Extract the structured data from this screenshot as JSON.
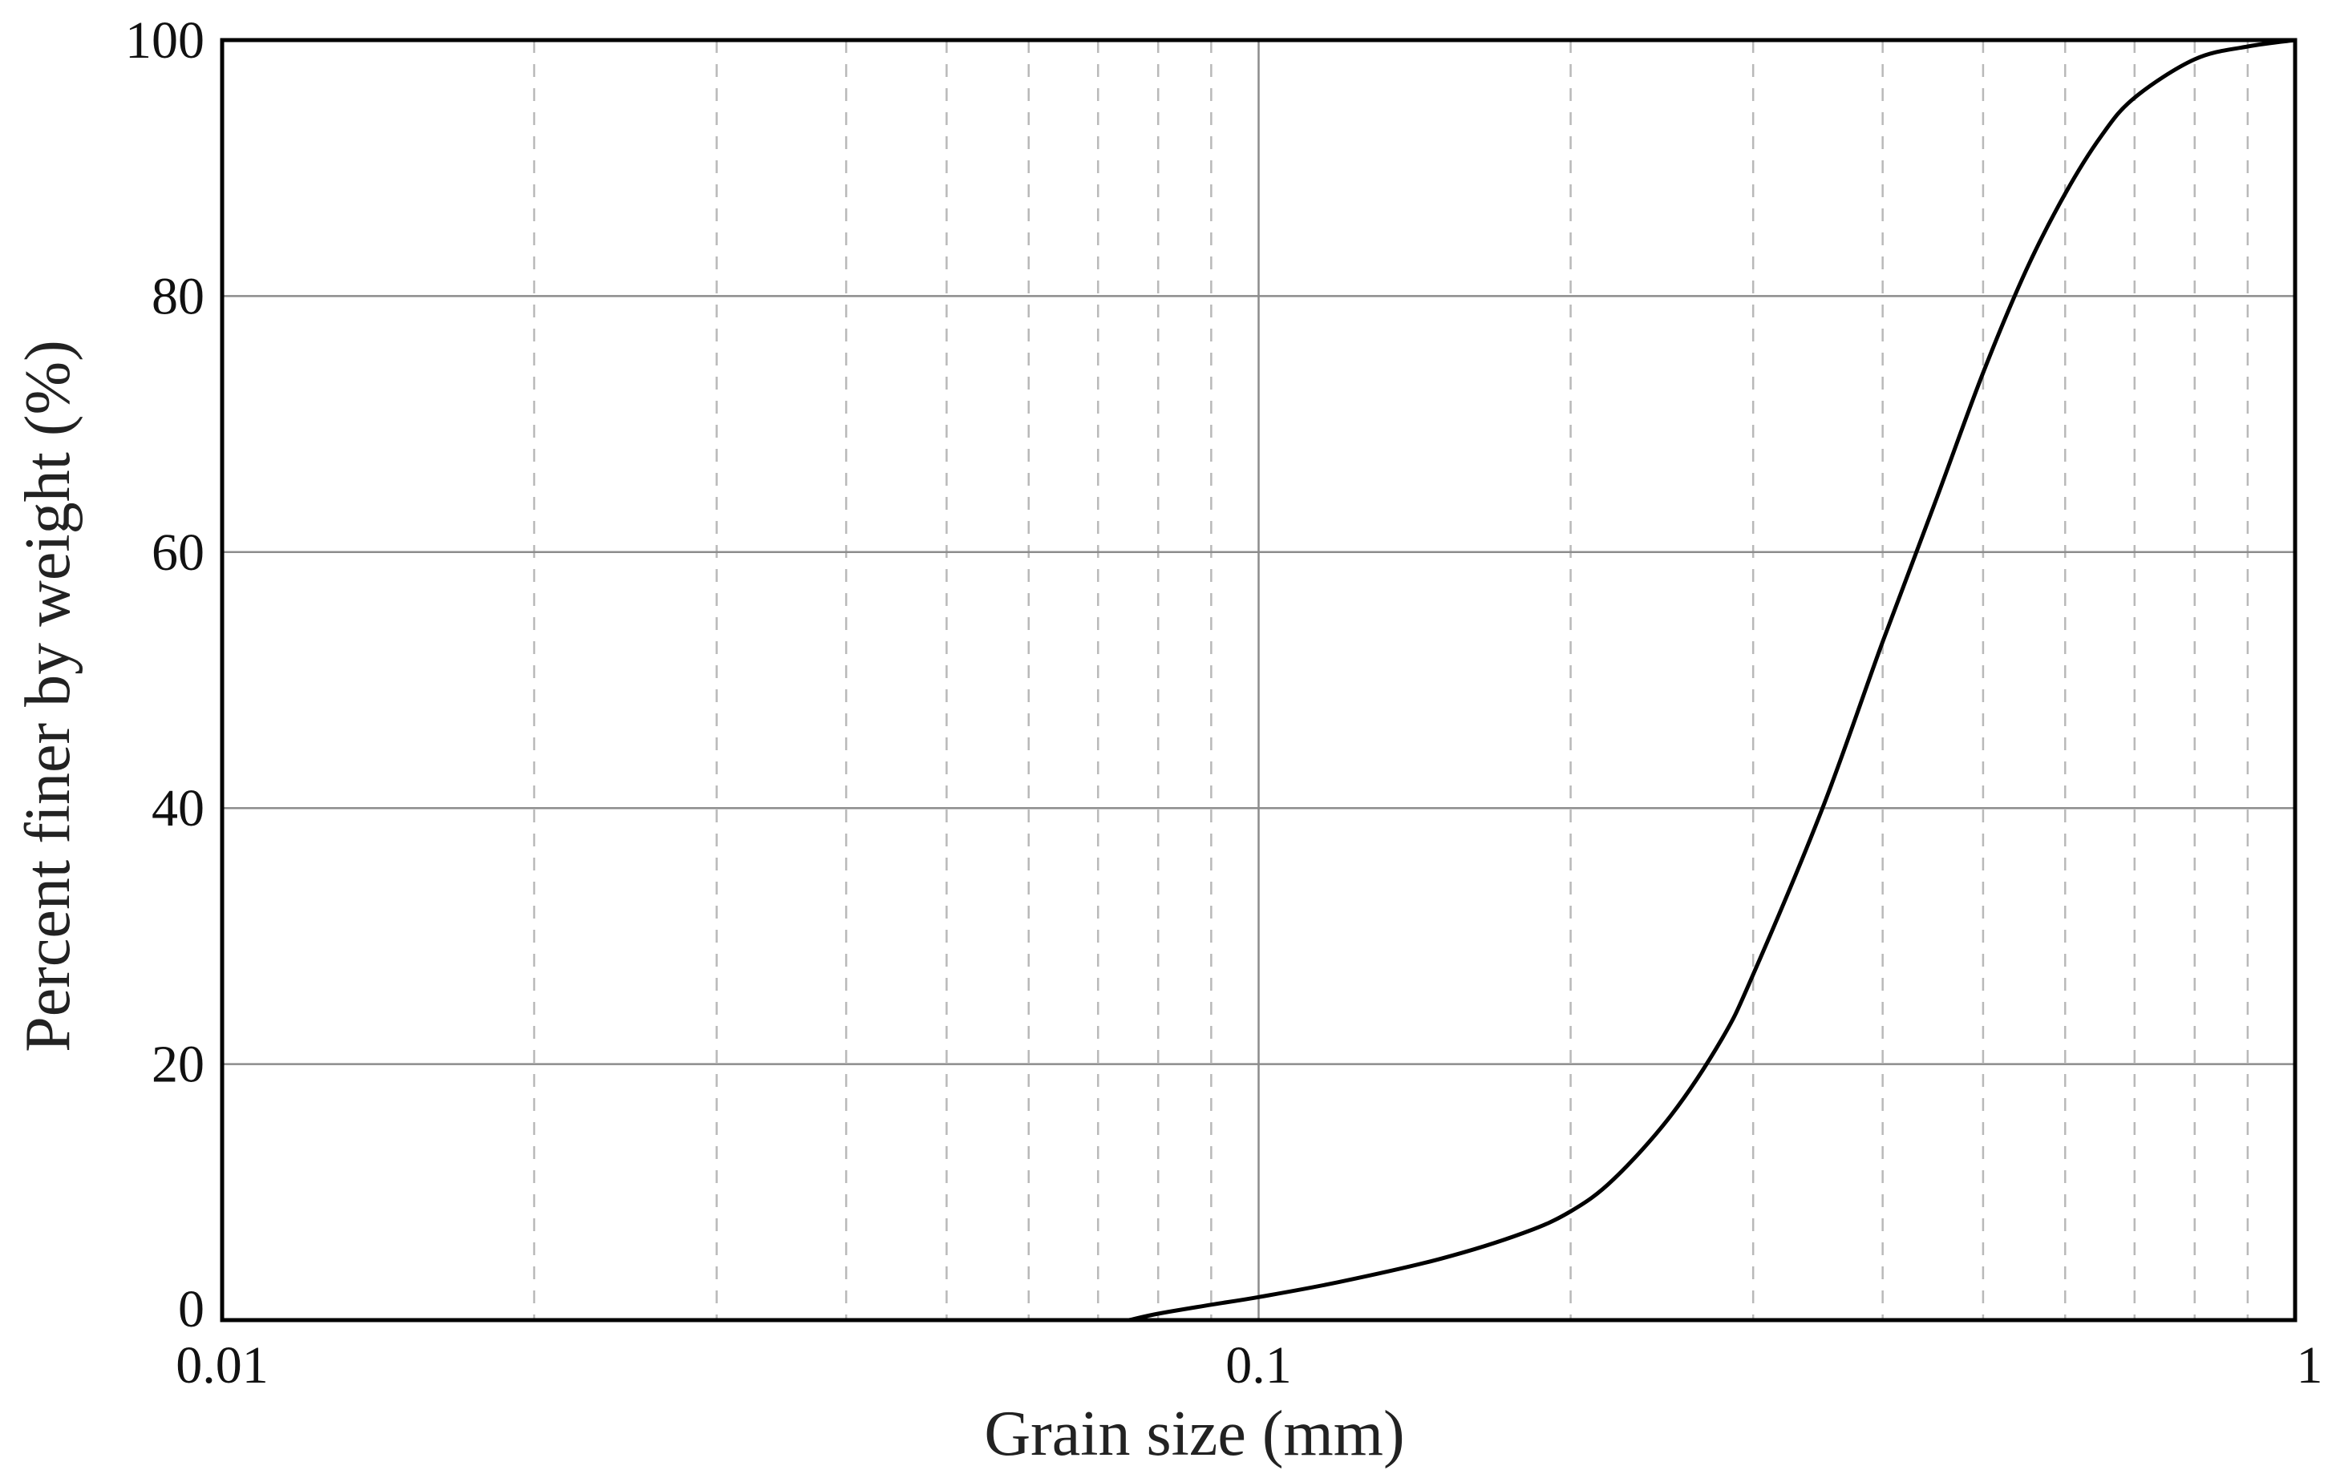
{
  "chart_data": {
    "type": "line",
    "title": "",
    "xlabel": "Grain size  (mm)",
    "ylabel": "Percent finer by weight (%)",
    "x_scale": "log",
    "xlim": [
      0.01,
      1
    ],
    "ylim": [
      0,
      100
    ],
    "x_ticks": [
      {
        "value": 0.01,
        "label": "0.01"
      },
      {
        "value": 0.1,
        "label": "0.1"
      },
      {
        "value": 1,
        "label": "1"
      }
    ],
    "y_ticks": [
      {
        "value": 0,
        "label": "0"
      },
      {
        "value": 20,
        "label": "20"
      },
      {
        "value": 40,
        "label": "40"
      },
      {
        "value": 60,
        "label": "60"
      },
      {
        "value": 80,
        "label": "80"
      },
      {
        "value": 100,
        "label": "100"
      }
    ],
    "x_minor_gridlines": [
      0.02,
      0.03,
      0.04,
      0.05,
      0.06,
      0.07,
      0.08,
      0.09,
      0.2,
      0.3,
      0.4,
      0.5,
      0.6,
      0.7,
      0.8,
      0.9
    ],
    "grid": {
      "major": "solid",
      "minor": "dashed"
    },
    "colors": {
      "curve": "#000000",
      "major_grid": "#8c8c8c",
      "minor_grid": "#b9b9b9"
    },
    "series": [
      {
        "x": [
          0.075,
          0.08,
          0.09,
          0.1,
          0.12,
          0.15,
          0.18,
          0.2,
          0.22,
          0.25,
          0.28,
          0.3,
          0.35,
          0.4,
          0.45,
          0.5,
          0.55,
          0.6,
          0.65,
          0.7,
          0.8,
          0.9,
          1.0
        ],
        "y": [
          0,
          0.5,
          1.2,
          1.8,
          3.0,
          4.8,
          6.8,
          8.5,
          11.0,
          16.0,
          22.0,
          27.0,
          40.0,
          53.0,
          64.0,
          74.0,
          82.0,
          88.0,
          92.5,
          95.5,
          98.5,
          99.5,
          100.0
        ]
      }
    ]
  }
}
